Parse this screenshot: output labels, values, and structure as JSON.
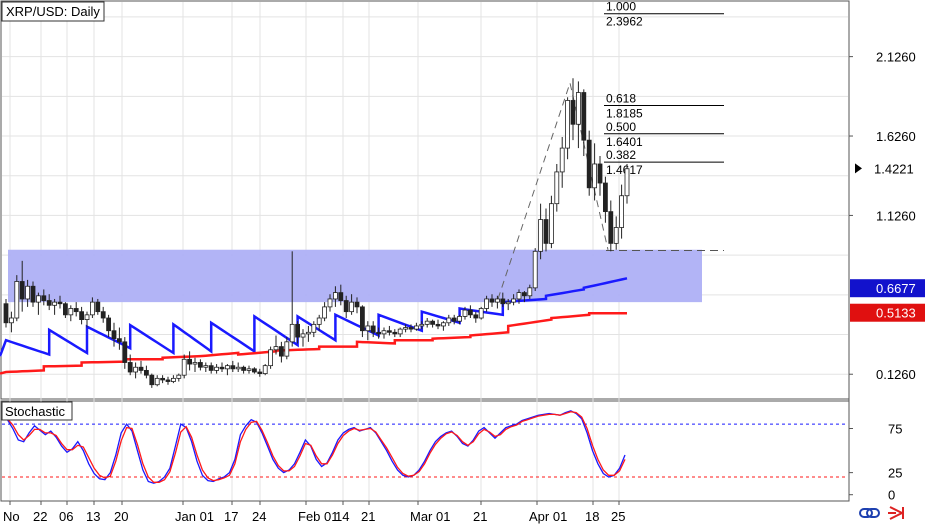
{
  "header": {
    "title": "XRP/USD: Daily"
  },
  "oscillator": {
    "title": "Stochastic"
  },
  "toolbar": {
    "icon_a": "link-icon",
    "icon_b": "arrow-icon"
  },
  "colors": {
    "zone": "#aeb0f5",
    "ma_fast": "#1a1aff",
    "ma_slow": "#ff1a1a",
    "candle_up": "#2a8a2a",
    "candle_down": "#aa2222",
    "stoch_k": "#1a1aff",
    "stoch_d": "#ff1a1a",
    "price_badge": "#000000",
    "ma_fast_badge": "#1212cc",
    "ma_slow_badge": "#e01010"
  },
  "chart_data": [
    {
      "type": "candlestick",
      "title": "XRP/USD: Daily",
      "x_tick_labels": [
        "No",
        "22",
        "06",
        "13",
        "20",
        "Jan 01",
        "17",
        "24",
        "Feb 01",
        "14",
        "21",
        "Mar 01",
        "21",
        "Apr 01",
        "18",
        "25"
      ],
      "y_tick_labels": [
        "2.1260",
        "1.6260",
        "1.1260",
        "0.1260"
      ],
      "ylim": [
        -0.03,
        2.47
      ],
      "grid": true,
      "price_badges": [
        {
          "label": "1.4221",
          "value": 1.4221,
          "kind": "last"
        },
        {
          "label": "0.6677",
          "value": 0.6677,
          "kind": "ma_fast"
        },
        {
          "label": "0.5133",
          "value": 0.5133,
          "kind": "ma_slow"
        }
      ],
      "fibonacci_levels": [
        {
          "ratio": "1.000",
          "price": "2.3962",
          "value": 2.3962
        },
        {
          "ratio": "0.618",
          "price": "1.8185",
          "value": 1.8185
        },
        {
          "ratio": "0.500",
          "price": "1.6401",
          "value": 1.6401
        },
        {
          "ratio": "0.382",
          "price": "1.4617",
          "value": 1.4617
        }
      ],
      "fib_trendline": [
        [
          0.66,
          0.6
        ],
        [
          1.96,
          0.88
        ],
        [
          0.91,
          0.0
        ]
      ],
      "support_zone": [
        0.58,
        0.91
      ],
      "zone_midline": 0.905,
      "moving_average_fast": [
        [
          0.34,
          0.25
        ],
        [
          0.405,
          0.26
        ],
        [
          0.425,
          0.29
        ],
        [
          0.435,
          0.26
        ],
        [
          0.44,
          0.27
        ],
        [
          0.45,
          0.27
        ],
        [
          0.49,
          0.31
        ],
        [
          0.49,
          0.34
        ],
        [
          0.5,
          0.37
        ],
        [
          0.5,
          0.4
        ],
        [
          0.52,
          0.45
        ],
        [
          0.54,
          0.5
        ],
        [
          0.58,
          0.6
        ],
        [
          0.62,
          0.66
        ],
        [
          0.67,
          0.73
        ]
      ],
      "moving_average_slow": [
        [
          0.14,
          0.15
        ],
        [
          0.175,
          0.18
        ],
        [
          0.2,
          0.205
        ],
        [
          0.22,
          0.22
        ],
        [
          0.23,
          0.24
        ],
        [
          0.24,
          0.26
        ],
        [
          0.25,
          0.27
        ],
        [
          0.275,
          0.285
        ],
        [
          0.3,
          0.3
        ],
        [
          0.33,
          0.32
        ],
        [
          0.34,
          0.34
        ],
        [
          0.35,
          0.36
        ],
        [
          0.37,
          0.39
        ],
        [
          0.43,
          0.47
        ],
        [
          0.48,
          0.5
        ],
        [
          0.51,
          0.51
        ]
      ],
      "candles": [
        [
          0.57,
          0.6,
          0.42,
          0.45
        ],
        [
          0.45,
          0.52,
          0.39,
          0.48
        ],
        [
          0.48,
          0.75,
          0.46,
          0.71
        ],
        [
          0.71,
          0.84,
          0.52,
          0.6
        ],
        [
          0.6,
          0.72,
          0.55,
          0.68
        ],
        [
          0.68,
          0.71,
          0.55,
          0.58
        ],
        [
          0.58,
          0.64,
          0.5,
          0.62
        ],
        [
          0.62,
          0.66,
          0.56,
          0.59
        ],
        [
          0.59,
          0.63,
          0.53,
          0.56
        ],
        [
          0.56,
          0.6,
          0.5,
          0.58
        ],
        [
          0.58,
          0.62,
          0.54,
          0.57
        ],
        [
          0.57,
          0.58,
          0.48,
          0.5
        ],
        [
          0.5,
          0.56,
          0.46,
          0.54
        ],
        [
          0.54,
          0.58,
          0.49,
          0.52
        ],
        [
          0.52,
          0.55,
          0.44,
          0.47
        ],
        [
          0.47,
          0.52,
          0.42,
          0.5
        ],
        [
          0.5,
          0.61,
          0.48,
          0.58
        ],
        [
          0.58,
          0.6,
          0.5,
          0.52
        ],
        [
          0.52,
          0.55,
          0.45,
          0.48
        ],
        [
          0.48,
          0.5,
          0.36,
          0.4
        ],
        [
          0.4,
          0.45,
          0.3,
          0.35
        ],
        [
          0.35,
          0.42,
          0.28,
          0.33
        ],
        [
          0.33,
          0.36,
          0.16,
          0.2
        ],
        [
          0.2,
          0.25,
          0.12,
          0.14
        ],
        [
          0.14,
          0.2,
          0.1,
          0.17
        ],
        [
          0.17,
          0.21,
          0.13,
          0.15
        ],
        [
          0.15,
          0.18,
          0.1,
          0.12
        ],
        [
          0.12,
          0.13,
          0.04,
          0.06
        ],
        [
          0.06,
          0.12,
          0.05,
          0.1
        ],
        [
          0.1,
          0.12,
          0.07,
          0.09
        ],
        [
          0.09,
          0.11,
          0.06,
          0.08
        ],
        [
          0.08,
          0.12,
          0.07,
          0.1
        ],
        [
          0.1,
          0.13,
          0.08,
          0.12
        ],
        [
          0.12,
          0.25,
          0.1,
          0.22
        ],
        [
          0.22,
          0.27,
          0.15,
          0.19
        ],
        [
          0.19,
          0.23,
          0.14,
          0.2
        ],
        [
          0.2,
          0.22,
          0.15,
          0.17
        ],
        [
          0.17,
          0.2,
          0.14,
          0.18
        ],
        [
          0.18,
          0.2,
          0.13,
          0.15
        ],
        [
          0.15,
          0.19,
          0.13,
          0.17
        ],
        [
          0.17,
          0.2,
          0.14,
          0.16
        ],
        [
          0.16,
          0.19,
          0.12,
          0.18
        ],
        [
          0.18,
          0.21,
          0.14,
          0.16
        ],
        [
          0.16,
          0.2,
          0.14,
          0.17
        ],
        [
          0.17,
          0.18,
          0.13,
          0.15
        ],
        [
          0.15,
          0.18,
          0.13,
          0.16
        ],
        [
          0.16,
          0.17,
          0.13,
          0.14
        ],
        [
          0.14,
          0.16,
          0.11,
          0.13
        ],
        [
          0.13,
          0.19,
          0.12,
          0.18
        ],
        [
          0.18,
          0.3,
          0.16,
          0.28
        ],
        [
          0.28,
          0.37,
          0.25,
          0.3
        ],
        [
          0.3,
          0.33,
          0.2,
          0.24
        ],
        [
          0.24,
          0.36,
          0.22,
          0.33
        ],
        [
          0.33,
          0.9,
          0.3,
          0.44
        ],
        [
          0.44,
          0.46,
          0.32,
          0.36
        ],
        [
          0.36,
          0.41,
          0.3,
          0.38
        ],
        [
          0.38,
          0.43,
          0.33,
          0.39
        ],
        [
          0.39,
          0.46,
          0.36,
          0.44
        ],
        [
          0.44,
          0.5,
          0.4,
          0.48
        ],
        [
          0.48,
          0.58,
          0.46,
          0.55
        ],
        [
          0.55,
          0.63,
          0.52,
          0.6
        ],
        [
          0.6,
          0.68,
          0.55,
          0.64
        ],
        [
          0.64,
          0.69,
          0.56,
          0.59
        ],
        [
          0.59,
          0.62,
          0.48,
          0.52
        ],
        [
          0.52,
          0.63,
          0.5,
          0.58
        ],
        [
          0.58,
          0.61,
          0.51,
          0.55
        ],
        [
          0.55,
          0.56,
          0.36,
          0.4
        ],
        [
          0.4,
          0.46,
          0.34,
          0.43
        ],
        [
          0.43,
          0.46,
          0.36,
          0.39
        ],
        [
          0.39,
          0.42,
          0.35,
          0.38
        ],
        [
          0.38,
          0.42,
          0.35,
          0.4
        ],
        [
          0.4,
          0.43,
          0.37,
          0.39
        ],
        [
          0.39,
          0.41,
          0.36,
          0.38
        ],
        [
          0.38,
          0.42,
          0.36,
          0.41
        ],
        [
          0.41,
          0.44,
          0.39,
          0.42
        ],
        [
          0.42,
          0.44,
          0.39,
          0.41
        ],
        [
          0.41,
          0.45,
          0.4,
          0.43
        ],
        [
          0.43,
          0.46,
          0.41,
          0.44
        ],
        [
          0.44,
          0.48,
          0.42,
          0.46
        ],
        [
          0.46,
          0.47,
          0.42,
          0.44
        ],
        [
          0.44,
          0.47,
          0.41,
          0.43
        ],
        [
          0.43,
          0.46,
          0.4,
          0.45
        ],
        [
          0.45,
          0.5,
          0.43,
          0.48
        ],
        [
          0.48,
          0.5,
          0.44,
          0.46
        ],
        [
          0.46,
          0.5,
          0.44,
          0.49
        ],
        [
          0.49,
          0.55,
          0.47,
          0.53
        ],
        [
          0.53,
          0.56,
          0.48,
          0.5
        ],
        [
          0.5,
          0.52,
          0.45,
          0.48
        ],
        [
          0.48,
          0.55,
          0.47,
          0.54
        ],
        [
          0.54,
          0.62,
          0.52,
          0.6
        ],
        [
          0.6,
          0.63,
          0.55,
          0.58
        ],
        [
          0.58,
          0.62,
          0.54,
          0.6
        ],
        [
          0.6,
          0.64,
          0.55,
          0.57
        ],
        [
          0.57,
          0.6,
          0.53,
          0.58
        ],
        [
          0.58,
          0.63,
          0.56,
          0.6
        ],
        [
          0.6,
          0.66,
          0.57,
          0.64
        ],
        [
          0.64,
          0.65,
          0.58,
          0.62
        ],
        [
          0.62,
          0.69,
          0.6,
          0.67
        ],
        [
          0.67,
          0.92,
          0.65,
          0.9
        ],
        [
          0.9,
          1.2,
          0.85,
          1.1
        ],
        [
          1.1,
          1.17,
          0.9,
          0.95
        ],
        [
          0.95,
          1.25,
          0.92,
          1.2
        ],
        [
          1.2,
          1.45,
          1.15,
          1.4
        ],
        [
          1.4,
          1.62,
          1.3,
          1.55
        ],
        [
          1.55,
          1.87,
          1.48,
          1.85
        ],
        [
          1.85,
          1.99,
          1.6,
          1.7
        ],
        [
          1.7,
          1.97,
          1.55,
          1.9
        ],
        [
          1.9,
          1.92,
          1.5,
          1.6
        ],
        [
          1.6,
          1.66,
          1.25,
          1.3
        ],
        [
          1.3,
          1.58,
          1.22,
          1.45
        ],
        [
          1.45,
          1.5,
          1.25,
          1.33
        ],
        [
          1.33,
          1.37,
          1.08,
          1.15
        ],
        [
          1.15,
          1.22,
          0.9,
          0.95
        ],
        [
          0.95,
          1.12,
          0.91,
          1.05
        ],
        [
          1.05,
          1.32,
          0.98,
          1.25
        ],
        [
          1.25,
          1.45,
          1.2,
          1.42
        ]
      ]
    },
    {
      "type": "line",
      "title": "Stochastic",
      "y_tick_labels": [
        "75",
        "25",
        "0"
      ],
      "ylim": [
        -6,
        105
      ],
      "levels": [
        80,
        20
      ],
      "series": [
        {
          "values": [
            88,
            85,
            75,
            62,
            60,
            70,
            78,
            73,
            68,
            72,
            65,
            55,
            48,
            52,
            60,
            50,
            35,
            24,
            18,
            17,
            25,
            45,
            70,
            80,
            72,
            50,
            28,
            15,
            13,
            15,
            20,
            30,
            55,
            80,
            76,
            60,
            38,
            22,
            16,
            15,
            18,
            20,
            25,
            40,
            68,
            78,
            85,
            82,
            70,
            55,
            40,
            30,
            25,
            28,
            35,
            48,
            62,
            55,
            40,
            32,
            36,
            48,
            62,
            70,
            74,
            76,
            72,
            74,
            76,
            70,
            60,
            50,
            38,
            28,
            22,
            20,
            22,
            28,
            38,
            50,
            60,
            66,
            70,
            72,
            66,
            58,
            55,
            62,
            72,
            76,
            70,
            64,
            70,
            76,
            78,
            80,
            84,
            86,
            88,
            90,
            91,
            92,
            91,
            90,
            93,
            95,
            92,
            86,
            70,
            50,
            35,
            24,
            20,
            22,
            30,
            45
          ]
        },
        {
          "values": [
            86,
            86,
            79,
            68,
            62,
            67,
            74,
            74,
            70,
            70,
            67,
            58,
            51,
            51,
            56,
            54,
            42,
            30,
            22,
            19,
            21,
            38,
            61,
            76,
            75,
            57,
            35,
            20,
            14,
            14,
            17,
            26,
            47,
            71,
            77,
            65,
            45,
            28,
            19,
            16,
            17,
            19,
            22,
            35,
            60,
            74,
            82,
            83,
            73,
            59,
            44,
            33,
            27,
            27,
            32,
            44,
            58,
            56,
            44,
            35,
            35,
            45,
            58,
            67,
            72,
            75,
            73,
            74,
            75,
            71,
            62,
            53,
            42,
            31,
            24,
            21,
            22,
            26,
            35,
            47,
            57,
            64,
            69,
            71,
            67,
            60,
            56,
            60,
            69,
            74,
            71,
            66,
            68,
            74,
            77,
            79,
            83,
            85,
            87,
            89,
            90,
            91,
            91,
            90,
            92,
            94,
            93,
            88,
            75,
            56,
            40,
            28,
            22,
            22,
            27,
            40
          ]
        }
      ]
    }
  ]
}
